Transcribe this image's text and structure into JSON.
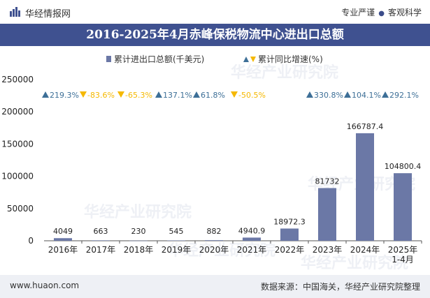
{
  "header": {
    "brand": "华经情报网",
    "tagline_left": "专业严谨",
    "tagline_right": "客观科学"
  },
  "footer": {
    "url": "www.huaon.com",
    "source": "数据来源：中国海关，华经产业研究院整理"
  },
  "watermark": "华经产业研究院",
  "colors": {
    "title_bg": "#3f5190",
    "bar": "#6b78a6",
    "up": "#3d6f97",
    "down": "#f5b800",
    "footer_bg": "#eef0f5"
  },
  "chart_data": {
    "type": "bar",
    "title": "2016-2025年4月赤峰保税物流中心进出口总额",
    "legend": {
      "bar_label": "累计进出口总额(千美元)",
      "growth_label": "累计同比增速(%)"
    },
    "categories": [
      "2016年",
      "2017年",
      "2018年",
      "2019年",
      "2020年",
      "2021年",
      "2022年",
      "2023年",
      "2024年",
      "2025年\n1-4月"
    ],
    "values": [
      4049,
      663,
      230,
      545,
      882,
      4940.9,
      18972.3,
      81732,
      166787.4,
      104800.4
    ],
    "value_labels": [
      "4049",
      "663",
      "230",
      "545",
      "882",
      "4940.9",
      "18972.3",
      "81732",
      "166787.4",
      "104800.4"
    ],
    "growth": [
      219.3,
      -83.6,
      -65.3,
      137.1,
      61.8,
      -50.5,
      null,
      330.8,
      104.1,
      292.1
    ],
    "growth_labels": [
      "219.3%",
      "-83.6%",
      "-65.3%",
      "137.1%",
      "61.8%",
      "-50.5%",
      "",
      "330.8%",
      "104.1%",
      "292.1%"
    ],
    "yticks": [
      "250000",
      "200000",
      "150000",
      "100000",
      "50000",
      "0"
    ],
    "ylim": [
      0,
      250000
    ]
  }
}
